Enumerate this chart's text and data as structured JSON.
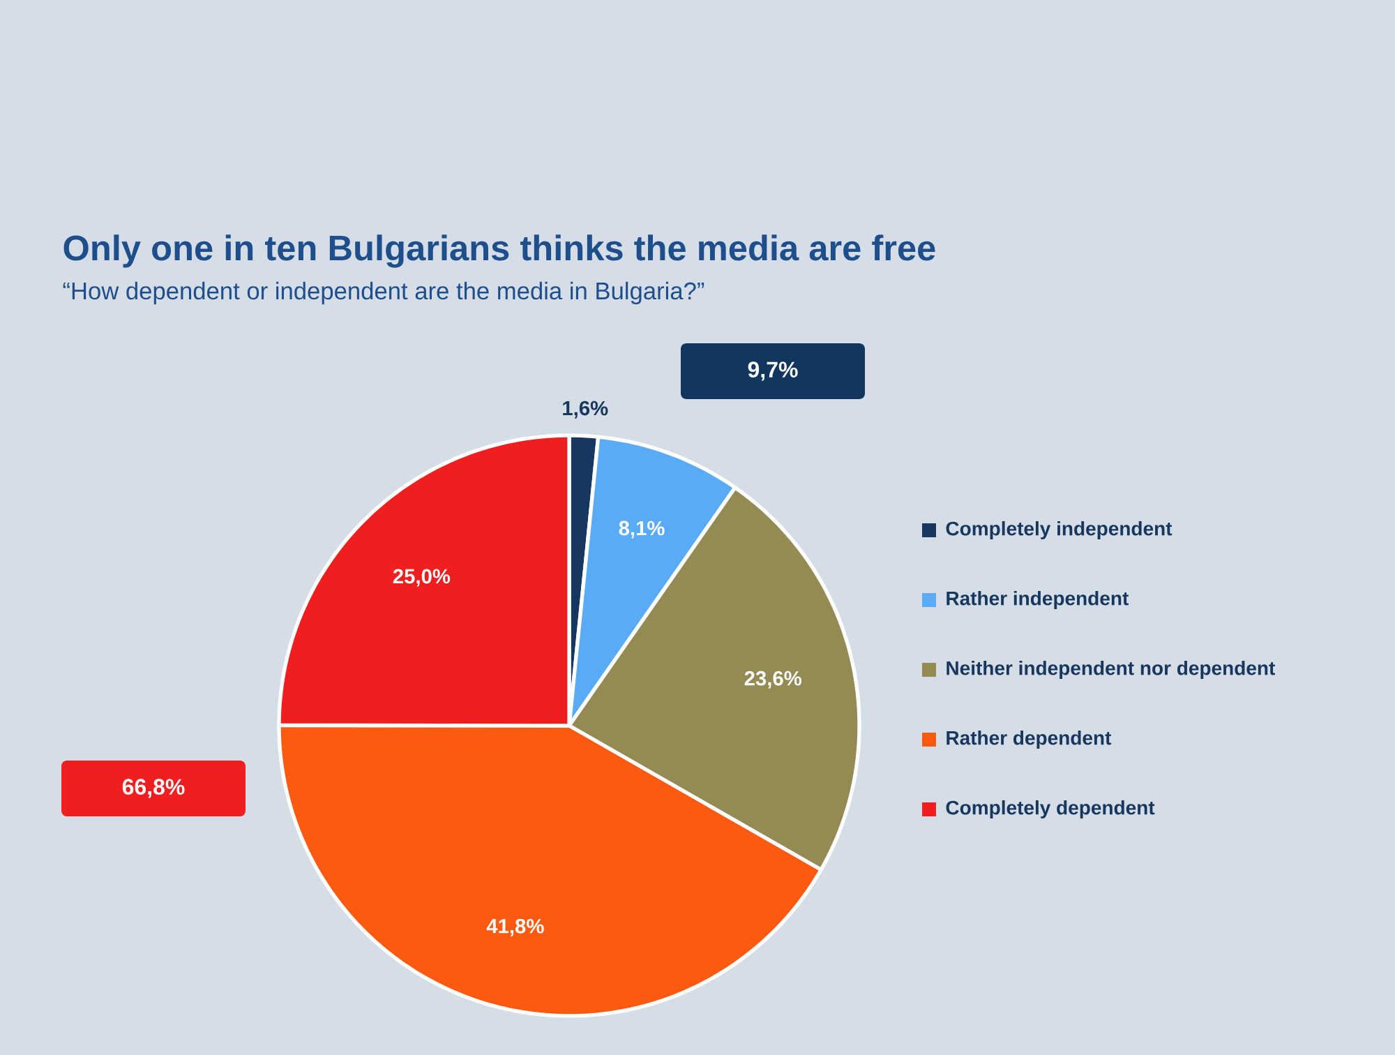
{
  "chart_data": {
    "type": "pie",
    "title": "Only one in ten Bulgarians thinks the media are free",
    "subtitle": "“How dependent or independent are the media in Bulgaria?”",
    "categories": [
      "Completely independent",
      "Rather independent",
      "Neither independent nor dependent",
      "Rather dependent",
      "Completely dependent"
    ],
    "values": [
      1.6,
      8.1,
      23.6,
      41.8,
      25.0
    ],
    "value_labels": [
      "1,6%",
      "8,1%",
      "23,6%",
      "41,8%",
      "25,0%"
    ],
    "colors": [
      "#17375e",
      "#5aabf5",
      "#948a54",
      "#fb5a10",
      "#f01e1e"
    ],
    "annotations": [
      "9,7%",
      "66,8%"
    ],
    "legend": "right"
  }
}
